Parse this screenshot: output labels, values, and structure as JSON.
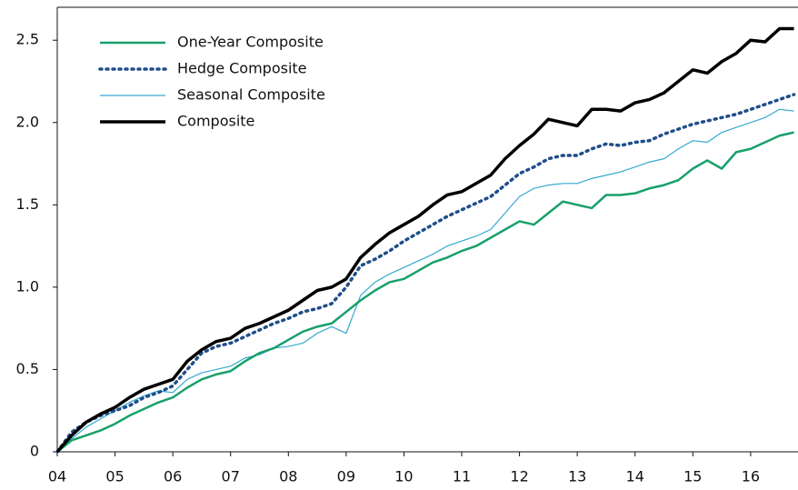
{
  "chart_data": {
    "type": "line",
    "x": [
      2004,
      2004.25,
      2004.5,
      2004.75,
      2005,
      2005.25,
      2005.5,
      2005.75,
      2006,
      2006.25,
      2006.5,
      2006.75,
      2007,
      2007.25,
      2007.5,
      2007.75,
      2008,
      2008.25,
      2008.5,
      2008.75,
      2009,
      2009.25,
      2009.5,
      2009.75,
      2010,
      2010.25,
      2010.5,
      2010.75,
      2011,
      2011.25,
      2011.5,
      2011.75,
      2012,
      2012.25,
      2012.5,
      2012.75,
      2013,
      2013.25,
      2013.5,
      2013.75,
      2014,
      2014.25,
      2014.5,
      2014.75,
      2015,
      2015.25,
      2015.5,
      2015.75,
      2016,
      2016.25,
      2016.5,
      2016.75
    ],
    "series": [
      {
        "name": "One-Year Composite",
        "color": "#17a06a",
        "linewidth": 2.5,
        "style": "solid",
        "values": [
          0,
          0.07,
          0.1,
          0.13,
          0.17,
          0.22,
          0.26,
          0.3,
          0.33,
          0.39,
          0.44,
          0.47,
          0.49,
          0.55,
          0.6,
          0.63,
          0.68,
          0.73,
          0.76,
          0.78,
          0.85,
          0.92,
          0.98,
          1.03,
          1.05,
          1.1,
          1.15,
          1.18,
          1.22,
          1.25,
          1.3,
          1.35,
          1.4,
          1.38,
          1.45,
          1.52,
          1.5,
          1.48,
          1.56,
          1.56,
          1.57,
          1.6,
          1.62,
          1.65,
          1.72,
          1.77,
          1.72,
          1.82,
          1.84,
          1.88,
          1.92,
          1.94
        ]
      },
      {
        "name": "Hedge Composite",
        "color": "#1f4e89",
        "linewidth": 3.5,
        "style": "dotted",
        "values": [
          0,
          0.12,
          0.18,
          0.22,
          0.25,
          0.28,
          0.33,
          0.36,
          0.4,
          0.5,
          0.6,
          0.64,
          0.66,
          0.7,
          0.74,
          0.78,
          0.81,
          0.85,
          0.87,
          0.9,
          1.0,
          1.13,
          1.17,
          1.22,
          1.28,
          1.33,
          1.38,
          1.43,
          1.47,
          1.51,
          1.55,
          1.62,
          1.69,
          1.73,
          1.78,
          1.8,
          1.8,
          1.84,
          1.87,
          1.86,
          1.88,
          1.89,
          1.93,
          1.96,
          1.99,
          2.01,
          2.03,
          2.05,
          2.08,
          2.11,
          2.14,
          2.17
        ]
      },
      {
        "name": "Seasonal Composite",
        "color": "#36a9d0",
        "linewidth": 1.2,
        "style": "solid",
        "values": [
          0,
          0.08,
          0.15,
          0.2,
          0.25,
          0.3,
          0.34,
          0.37,
          0.36,
          0.44,
          0.48,
          0.5,
          0.52,
          0.57,
          0.59,
          0.63,
          0.64,
          0.66,
          0.72,
          0.76,
          0.72,
          0.95,
          1.03,
          1.08,
          1.12,
          1.16,
          1.2,
          1.25,
          1.28,
          1.31,
          1.35,
          1.45,
          1.55,
          1.6,
          1.62,
          1.63,
          1.63,
          1.66,
          1.68,
          1.7,
          1.73,
          1.76,
          1.78,
          1.84,
          1.89,
          1.88,
          1.94,
          1.97,
          2.0,
          2.03,
          2.08,
          2.07
        ]
      },
      {
        "name": "Composite",
        "color": "#000000",
        "linewidth": 3.5,
        "style": "solid",
        "values": [
          0,
          0.1,
          0.18,
          0.23,
          0.27,
          0.33,
          0.38,
          0.41,
          0.44,
          0.55,
          0.62,
          0.67,
          0.69,
          0.75,
          0.78,
          0.82,
          0.86,
          0.92,
          0.98,
          1.0,
          1.05,
          1.18,
          1.26,
          1.33,
          1.38,
          1.43,
          1.5,
          1.56,
          1.58,
          1.63,
          1.68,
          1.78,
          1.86,
          1.93,
          2.02,
          2.0,
          1.98,
          2.08,
          2.08,
          2.07,
          2.12,
          2.14,
          2.18,
          2.25,
          2.32,
          2.3,
          2.37,
          2.42,
          2.5,
          2.49,
          2.57,
          2.57
        ]
      }
    ],
    "xlim": [
      2004,
      2016.82
    ],
    "xticks": [
      {
        "value": 2004,
        "label": "04"
      },
      {
        "value": 2005,
        "label": "05"
      },
      {
        "value": 2006,
        "label": "06"
      },
      {
        "value": 2007,
        "label": "07"
      },
      {
        "value": 2008,
        "label": "08"
      },
      {
        "value": 2009,
        "label": "09"
      },
      {
        "value": 2010,
        "label": "10"
      },
      {
        "value": 2011,
        "label": "11"
      },
      {
        "value": 2012,
        "label": "12"
      },
      {
        "value": 2013,
        "label": "13"
      },
      {
        "value": 2014,
        "label": "14"
      },
      {
        "value": 2015,
        "label": "15"
      },
      {
        "value": 2016,
        "label": "16"
      }
    ],
    "ylim": [
      0,
      2.7
    ],
    "yticks": [
      0,
      0.5,
      {
        "value": 1,
        "label": "1.0"
      },
      1.5,
      {
        "value": 2,
        "label": "2.0"
      },
      2.5
    ],
    "legend": "upper left"
  }
}
